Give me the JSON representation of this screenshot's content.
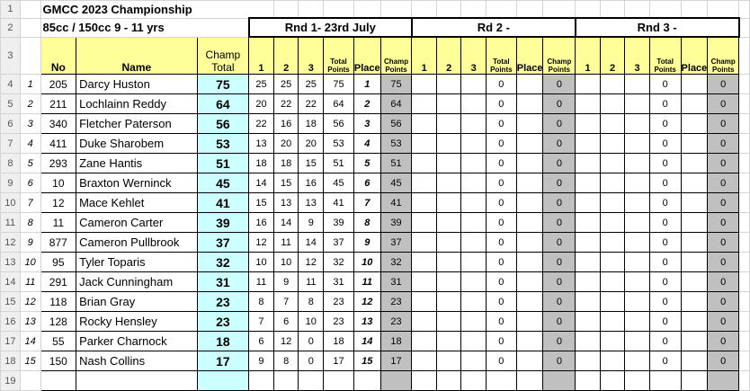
{
  "title": "GMCC 2023 Championship",
  "subtitle": "85cc  / 150cc 9 - 11 yrs",
  "rounds": [
    "Rnd 1- 23rd July",
    "Rd 2 -",
    "Rnd 3 -"
  ],
  "headers": {
    "no": "No",
    "name": "Name",
    "champ_total": "Champ Total",
    "h1": "1",
    "h2": "2",
    "h3": "3",
    "total_points": "Total Points",
    "place": "Place",
    "champ_points": "Champ Points"
  },
  "row_numbers": [
    "1",
    "2",
    "3",
    "4",
    "5",
    "6",
    "7",
    "8",
    "9",
    "10",
    "11",
    "12",
    "13",
    "14",
    "15",
    "16",
    "17",
    "18",
    "19"
  ],
  "riders": [
    {
      "rank": "1",
      "no": "205",
      "name": "Darcy Huston",
      "champ_total": "75",
      "r1": [
        "25",
        "25",
        "25",
        "75",
        "1",
        "75"
      ]
    },
    {
      "rank": "2",
      "no": "211",
      "name": "Lochlainn Reddy",
      "champ_total": "64",
      "r1": [
        "20",
        "22",
        "22",
        "64",
        "2",
        "64"
      ]
    },
    {
      "rank": "3",
      "no": "340",
      "name": "Fletcher Paterson",
      "champ_total": "56",
      "r1": [
        "22",
        "16",
        "18",
        "56",
        "3",
        "56"
      ]
    },
    {
      "rank": "4",
      "no": "411",
      "name": "Duke Sharobem",
      "champ_total": "53",
      "r1": [
        "13",
        "20",
        "20",
        "53",
        "4",
        "53"
      ]
    },
    {
      "rank": "5",
      "no": "293",
      "name": "Zane Hantis",
      "champ_total": "51",
      "r1": [
        "18",
        "18",
        "15",
        "51",
        "5",
        "51"
      ]
    },
    {
      "rank": "6",
      "no": "10",
      "name": "Braxton Werninck",
      "champ_total": "45",
      "r1": [
        "14",
        "15",
        "16",
        "45",
        "6",
        "45"
      ]
    },
    {
      "rank": "7",
      "no": "12",
      "name": "Mace Kehlet",
      "champ_total": "41",
      "r1": [
        "15",
        "13",
        "13",
        "41",
        "7",
        "41"
      ]
    },
    {
      "rank": "8",
      "no": "11",
      "name": "Cameron Carter",
      "champ_total": "39",
      "r1": [
        "16",
        "14",
        "9",
        "39",
        "8",
        "39"
      ]
    },
    {
      "rank": "9",
      "no": "877",
      "name": "Cameron Pullbrook",
      "champ_total": "37",
      "r1": [
        "12",
        "11",
        "14",
        "37",
        "9",
        "37"
      ]
    },
    {
      "rank": "10",
      "no": "95",
      "name": "Tyler Toparis",
      "champ_total": "32",
      "r1": [
        "10",
        "10",
        "12",
        "32",
        "10",
        "32"
      ]
    },
    {
      "rank": "11",
      "no": "291",
      "name": "Jack Cunningham",
      "champ_total": "31",
      "r1": [
        "11",
        "9",
        "11",
        "31",
        "11",
        "31"
      ]
    },
    {
      "rank": "12",
      "no": "118",
      "name": "Brian Gray",
      "champ_total": "23",
      "r1": [
        "8",
        "7",
        "8",
        "23",
        "12",
        "23"
      ]
    },
    {
      "rank": "13",
      "no": "128",
      "name": "Rocky Hensley",
      "champ_total": "23",
      "r1": [
        "7",
        "6",
        "10",
        "23",
        "13",
        "23"
      ]
    },
    {
      "rank": "14",
      "no": "55",
      "name": "Parker Charnock",
      "champ_total": "18",
      "r1": [
        "6",
        "12",
        "0",
        "18",
        "14",
        "18"
      ]
    },
    {
      "rank": "15",
      "no": "150",
      "name": "Nash Collins",
      "champ_total": "17",
      "r1": [
        "9",
        "8",
        "0",
        "17",
        "15",
        "17"
      ]
    }
  ],
  "empty_round_total": "0",
  "empty_round_champ": "0"
}
